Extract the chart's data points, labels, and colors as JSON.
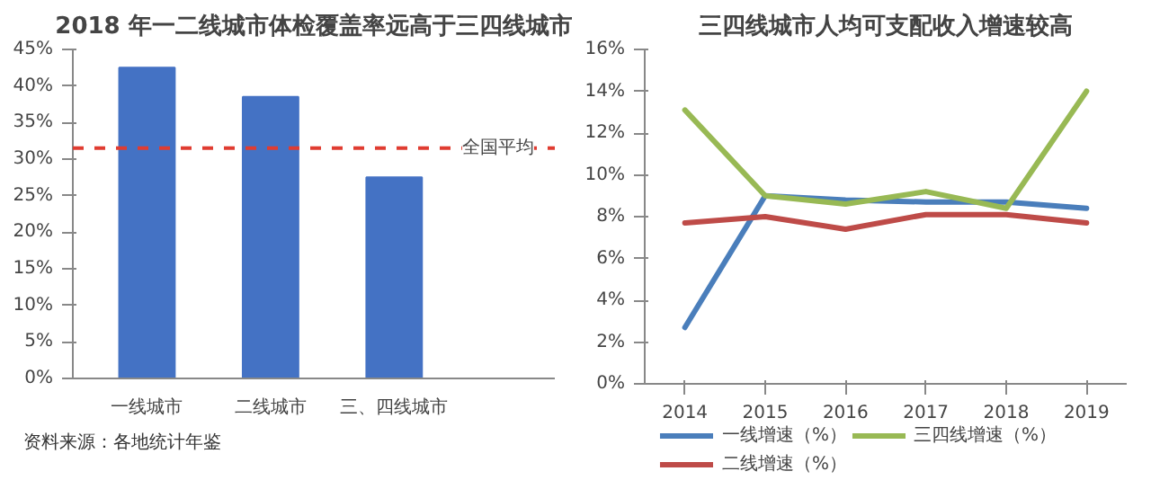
{
  "chart_data": [
    {
      "type": "bar",
      "title": "2018 年一二线城市体检覆盖率远高于三四线城市",
      "categories": [
        "一线城市",
        "二线城市",
        "三、四线城市"
      ],
      "values": [
        42.5,
        38.5,
        27.5
      ],
      "color": "#4472c4",
      "ylim": [
        0,
        45
      ],
      "yticks": [
        {
          "value": 0,
          "label": "0%"
        },
        {
          "value": 5,
          "label": "5%"
        },
        {
          "value": 10,
          "label": "10%"
        },
        {
          "value": 15,
          "label": "15%"
        },
        {
          "value": 20,
          "label": "20%"
        },
        {
          "value": 25,
          "label": "25%"
        },
        {
          "value": 30,
          "label": "30%"
        },
        {
          "value": 35,
          "label": "35%"
        },
        {
          "value": 40,
          "label": "40%"
        },
        {
          "value": 45,
          "label": "45%"
        }
      ],
      "ref_lines": [
        {
          "axis": "y",
          "value": 31.5,
          "label": "全国平均",
          "color": "#e03c31",
          "line_style": "dashed"
        }
      ],
      "annotations": [
        "资料来源：各地统计年鉴"
      ],
      "grid": false
    },
    {
      "type": "line",
      "title": "三四线城市人均可支配收入增速较高",
      "categories": [
        "2014",
        "2015",
        "2016",
        "2017",
        "2018",
        "2019"
      ],
      "series": [
        {
          "name": "一线增速（%）",
          "color": "#4a7ebb",
          "values": [
            2.7,
            9.0,
            8.8,
            8.7,
            8.7,
            8.4
          ]
        },
        {
          "name": "二线增速（%）",
          "color": "#be4b48",
          "values": [
            7.7,
            8.0,
            7.4,
            8.1,
            8.1,
            7.7
          ]
        },
        {
          "name": "三四线增速（%）",
          "color": "#98b954",
          "values": [
            13.1,
            9.0,
            8.6,
            9.2,
            8.4,
            14.0
          ]
        }
      ],
      "ylim": [
        0,
        16
      ],
      "yticks": [
        {
          "value": 0,
          "label": "0%"
        },
        {
          "value": 2,
          "label": "2%"
        },
        {
          "value": 4,
          "label": "4%"
        },
        {
          "value": 6,
          "label": "6%"
        },
        {
          "value": 8,
          "label": "8%"
        },
        {
          "value": 10,
          "label": "10%"
        },
        {
          "value": 12,
          "label": "12%"
        },
        {
          "value": 14,
          "label": "14%"
        },
        {
          "value": 16,
          "label": "16%"
        }
      ],
      "grid": false,
      "legend": "bottom",
      "marker": "none",
      "line_style": "solid"
    }
  ]
}
